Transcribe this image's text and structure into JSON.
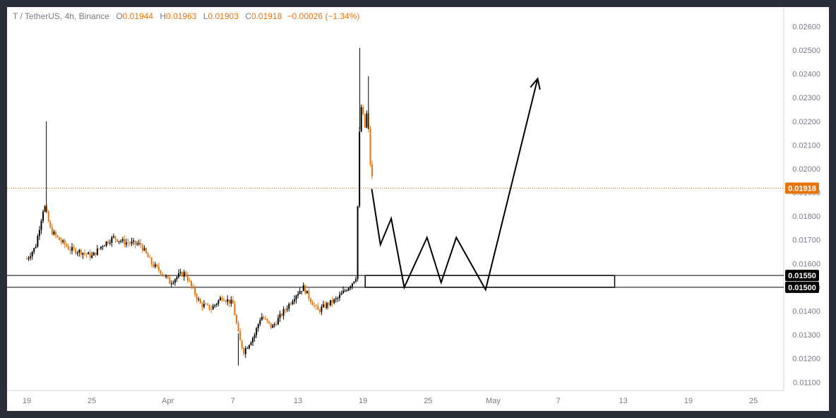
{
  "header": {
    "symbol": "T / TetherUS, 4h, Binance",
    "open_label": "O",
    "open": "0.01944",
    "high_label": "H",
    "high": "0.01963",
    "low_label": "L",
    "low": "0.01903",
    "close_label": "C",
    "close": "0.01918",
    "change": "−0.00026 (−1.34%)"
  },
  "colors": {
    "up": "#000000",
    "down": "#e8740c",
    "price_line": "#e8740c",
    "axis_text": "#787b86"
  },
  "chart_data": {
    "type": "candlestick",
    "ylim": [
      0.0108,
      0.0264
    ],
    "y_ticks": [
      "0.02600",
      "0.02500",
      "0.02400",
      "0.02300",
      "0.02200",
      "0.02100",
      "0.02000",
      "0.01900",
      "0.01800",
      "0.01700",
      "0.01600",
      "0.01500",
      "0.01400",
      "0.01300",
      "0.01200",
      "0.01100"
    ],
    "x_ticks": [
      {
        "label": "19",
        "day": 0
      },
      {
        "label": "25",
        "day": 6
      },
      {
        "label": "Apr",
        "day": 13
      },
      {
        "label": "7",
        "day": 19
      },
      {
        "label": "13",
        "day": 25
      },
      {
        "label": "19",
        "day": 31
      },
      {
        "label": "25",
        "day": 37
      },
      {
        "label": "May",
        "day": 43
      },
      {
        "label": "7",
        "day": 49
      },
      {
        "label": "13",
        "day": 55
      },
      {
        "label": "19",
        "day": 61
      },
      {
        "label": "25",
        "day": 67
      }
    ],
    "last_price": "0.01918",
    "levels": [
      {
        "label": "0.01550",
        "value": 0.0155
      },
      {
        "label": "0.01500",
        "value": 0.015
      }
    ],
    "zone": {
      "low": 0.015,
      "high": 0.0155,
      "start_day": 31.2,
      "end_day": 54.2
    },
    "projection": [
      {
        "day": 31.8,
        "price": 0.01915
      },
      {
        "day": 32.6,
        "price": 0.0168
      },
      {
        "day": 33.6,
        "price": 0.0179
      },
      {
        "day": 34.8,
        "price": 0.015
      },
      {
        "day": 36.9,
        "price": 0.0171
      },
      {
        "day": 38.2,
        "price": 0.0152
      },
      {
        "day": 39.6,
        "price": 0.0171
      },
      {
        "day": 42.3,
        "price": 0.0149
      },
      {
        "day": 47.1,
        "price": 0.0238
      }
    ],
    "price_path": [
      [
        0,
        0.0162
      ],
      [
        0.8,
        0.0167
      ],
      [
        1.6,
        0.0185
      ],
      [
        2.2,
        0.0174
      ],
      [
        3,
        0.017
      ],
      [
        4,
        0.0166
      ],
      [
        5,
        0.0165
      ],
      [
        6,
        0.0163
      ],
      [
        7,
        0.0168
      ],
      [
        8,
        0.0171
      ],
      [
        9,
        0.0169
      ],
      [
        10.5,
        0.0168
      ],
      [
        11.5,
        0.016
      ],
      [
        12.5,
        0.0156
      ],
      [
        13.2,
        0.0152
      ],
      [
        14,
        0.0155
      ],
      [
        14.6,
        0.0156
      ],
      [
        15.2,
        0.015
      ],
      [
        16,
        0.0143
      ],
      [
        17,
        0.0141
      ],
      [
        18,
        0.0146
      ],
      [
        19,
        0.0143
      ],
      [
        19.6,
        0.0128
      ],
      [
        20,
        0.0123
      ],
      [
        21,
        0.013
      ],
      [
        21.6,
        0.0138
      ],
      [
        22.6,
        0.0133
      ],
      [
        23.4,
        0.0138
      ],
      [
        24.2,
        0.0143
      ],
      [
        24.8,
        0.0147
      ],
      [
        25.5,
        0.015
      ],
      [
        26,
        0.0146
      ],
      [
        26.8,
        0.014
      ],
      [
        27.8,
        0.0143
      ],
      [
        28.6,
        0.0145
      ],
      [
        29.4,
        0.0149
      ],
      [
        30,
        0.0152
      ],
      [
        30.4,
        0.0155
      ],
      [
        30.6,
        0.021
      ],
      [
        30.9,
        0.023
      ],
      [
        31.1,
        0.0215
      ],
      [
        31.4,
        0.0225
      ],
      [
        31.7,
        0.02
      ],
      [
        32.0,
        0.0192
      ]
    ],
    "spikes": [
      {
        "day": 1.8,
        "high": 0.022
      },
      {
        "day": 30.7,
        "high": 0.0251
      },
      {
        "day": 31.5,
        "high": 0.0239
      },
      {
        "day": 19.5,
        "low": 0.0117
      }
    ]
  }
}
